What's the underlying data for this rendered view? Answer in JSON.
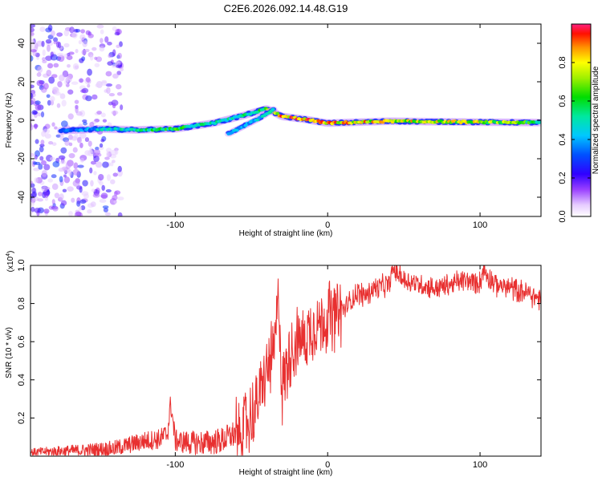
{
  "figure_title": "C2E6.2026.092.14.48.G19",
  "chart_data": [
    {
      "type": "heatmap",
      "title": "C2E6.2026.092.14.48.G19",
      "xlabel": "Height of straight line (km)",
      "ylabel": "Frequency (Hz)",
      "xlim": [
        -195,
        140
      ],
      "ylim": [
        -50,
        50
      ],
      "xticks": [
        -100,
        0,
        100
      ],
      "yticks": [
        -40,
        -20,
        0,
        20,
        40
      ],
      "xtick_labels": [
        "-100",
        "0",
        "100"
      ],
      "ytick_labels": [
        "-40",
        "-20",
        "0",
        "20",
        "40"
      ],
      "colorbar": {
        "label": "Normalized spectral amplitude",
        "range": [
          0,
          1
        ],
        "ticks": [
          0.0,
          0.2,
          0.4,
          0.6,
          0.8
        ],
        "tick_labels": [
          "0.0",
          "0.2",
          "0.4",
          "0.6",
          "0.8"
        ]
      },
      "main_track": [
        {
          "x": -175,
          "f": -5.5,
          "amp": 0.3
        },
        {
          "x": -150,
          "f": -4.5,
          "amp": 0.45
        },
        {
          "x": -125,
          "f": -5.0,
          "amp": 0.5
        },
        {
          "x": -100,
          "f": -4.5,
          "amp": 0.6
        },
        {
          "x": -75,
          "f": -1.5,
          "amp": 0.5
        },
        {
          "x": -55,
          "f": 2.5,
          "amp": 0.55
        },
        {
          "x": -40,
          "f": 6.0,
          "amp": 0.65
        },
        {
          "x": -30,
          "f": 2.0,
          "amp": 0.9
        },
        {
          "x": -15,
          "f": 0.5,
          "amp": 0.9
        },
        {
          "x": 0,
          "f": -1.5,
          "amp": 0.85
        },
        {
          "x": 40,
          "f": -0.5,
          "amp": 0.8
        },
        {
          "x": 100,
          "f": -1.0,
          "amp": 0.75
        },
        {
          "x": 140,
          "f": -1.2,
          "amp": 0.6
        }
      ],
      "second_track": [
        {
          "x": -65,
          "f": -7.0,
          "amp": 0.4
        },
        {
          "x": -45,
          "f": 1.0,
          "amp": 0.5
        },
        {
          "x": -35,
          "f": 6.0,
          "amp": 0.5
        }
      ]
    },
    {
      "type": "line",
      "xlabel": "Height of straight line (km)",
      "ylabel": "SNR (10 * v/v)",
      "y_multiplier": "(x10^4)",
      "y_multiplier_base": "(x10",
      "y_multiplier_exp": "4",
      "y_multiplier_close": ")",
      "xlim": [
        -195,
        140
      ],
      "ylim": [
        0,
        1.0
      ],
      "xticks": [
        -100,
        0,
        100
      ],
      "yticks": [
        0.2,
        0.4,
        0.6,
        0.8,
        1.0
      ],
      "xtick_labels": [
        "-100",
        "0",
        "100"
      ],
      "ytick_labels": [
        "0.2",
        "0.4",
        "0.6",
        "0.8",
        "1.0"
      ],
      "series": [
        {
          "name": "SNR",
          "color": "#e83030",
          "x": [
            -195,
            -180,
            -160,
            -140,
            -130,
            -120,
            -110,
            -105,
            -103,
            -100,
            -90,
            -80,
            -70,
            -60,
            -50,
            -45,
            -40,
            -35,
            -32,
            -30,
            -25,
            -20,
            -15,
            -10,
            -5,
            0,
            10,
            20,
            25,
            30,
            40,
            43,
            50,
            60,
            70,
            80,
            90,
            100,
            102,
            110,
            120,
            130,
            140
          ],
          "y": [
            0.02,
            0.025,
            0.03,
            0.04,
            0.06,
            0.08,
            0.09,
            0.12,
            0.28,
            0.08,
            0.07,
            0.07,
            0.08,
            0.12,
            0.2,
            0.3,
            0.45,
            0.55,
            0.84,
            0.35,
            0.55,
            0.6,
            0.62,
            0.68,
            0.7,
            0.72,
            0.76,
            0.86,
            0.84,
            0.88,
            0.9,
            0.98,
            0.92,
            0.9,
            0.88,
            0.9,
            0.92,
            0.91,
            0.98,
            0.9,
            0.88,
            0.86,
            0.82
          ]
        }
      ]
    }
  ],
  "colors": {
    "snr_line": "#e83030",
    "axis": "#000000"
  }
}
